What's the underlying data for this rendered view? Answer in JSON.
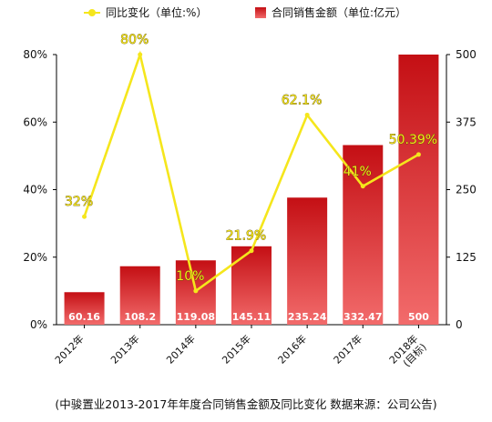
{
  "chart_data": {
    "type": "bar",
    "categories": [
      "2012年",
      "2013年",
      "2014年",
      "2015年",
      "2016年",
      "2017年",
      "2018年\n(目标)"
    ],
    "series": [
      {
        "name": "合同销售金额（单位:亿元）",
        "type": "bar",
        "axis": "right",
        "values": [
          60.16,
          108.2,
          119.08,
          145.11,
          235.24,
          332.47,
          500
        ],
        "labels": [
          "60.16",
          "108.2",
          "119.08",
          "145.11",
          "235.24",
          "332.47",
          "500"
        ]
      },
      {
        "name": "同比变化（单位:%）",
        "type": "line",
        "axis": "left",
        "values": [
          32,
          80,
          10,
          21.9,
          62.1,
          41,
          50.39
        ],
        "labels": [
          "32%",
          "80%",
          "10%",
          "21.9%",
          "62.1%",
          "41%",
          "50.39%"
        ]
      }
    ],
    "left_axis": {
      "min": 0,
      "max": 80,
      "ticks": [
        "0%",
        "20%",
        "40%",
        "60%",
        "80%"
      ]
    },
    "right_axis": {
      "min": 0,
      "max": 500,
      "ticks": [
        "0",
        "125",
        "250",
        "375",
        "500"
      ]
    },
    "legend_position": "top",
    "colors": {
      "bar_top": "#c40f14",
      "bar_bottom": "#f26b6b",
      "line": "#f5e61c",
      "frame": "#000000"
    },
    "caption": "(中骏置业2013-2017年年度合同销售金额及同比变化 数据来源：公司公告)"
  }
}
